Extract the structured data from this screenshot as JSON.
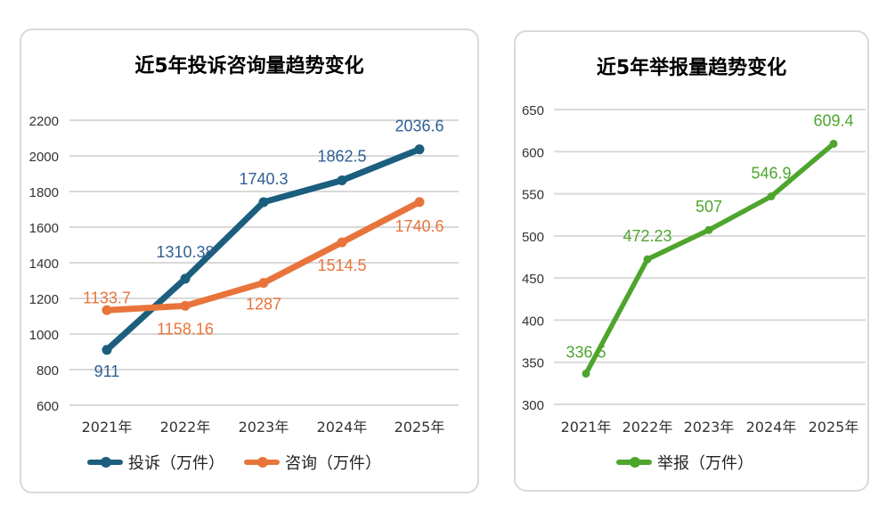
{
  "chart_data": [
    {
      "type": "line",
      "title": "近5年投诉咨询量趋势变化",
      "categories": [
        "2021年",
        "2022年",
        "2023年",
        "2024年",
        "2025年"
      ],
      "ylim": [
        600,
        2200
      ],
      "yticks": [
        600,
        800,
        1000,
        1200,
        1400,
        1600,
        1800,
        2000,
        2200
      ],
      "grid": true,
      "legend": "bottom",
      "series": [
        {
          "name": "投诉（万件）",
          "values": [
            911,
            1310.38,
            1740.3,
            1862.5,
            2036.6
          ],
          "labels": [
            "911",
            "1310.38",
            "1740.3",
            "1862.5",
            "2036.6"
          ],
          "color": "#1b5e7e",
          "label_color": "#2f5f93"
        },
        {
          "name": "咨询（万件）",
          "values": [
            1133.7,
            1158.16,
            1287,
            1514.5,
            1740.6
          ],
          "labels": [
            "1133.7",
            "1158.16",
            "1287",
            "1514.5",
            "1740.6"
          ],
          "color": "#e8743b",
          "label_color": "#e8743b"
        }
      ]
    },
    {
      "type": "line",
      "title": "近5年举报量趋势变化",
      "categories": [
        "2021年",
        "2022年",
        "2023年",
        "2024年",
        "2025年"
      ],
      "ylim": [
        300,
        650
      ],
      "yticks": [
        300,
        350,
        400,
        450,
        500,
        550,
        600,
        650
      ],
      "grid": true,
      "legend": "bottom",
      "series": [
        {
          "name": "举报（万件）",
          "values": [
            336.5,
            472.23,
            507,
            546.9,
            609.4
          ],
          "labels": [
            "336.5",
            "472.23",
            "507",
            "546.9",
            "609.4"
          ],
          "color": "#4ea52e",
          "label_color": "#4ea52e"
        }
      ]
    }
  ]
}
